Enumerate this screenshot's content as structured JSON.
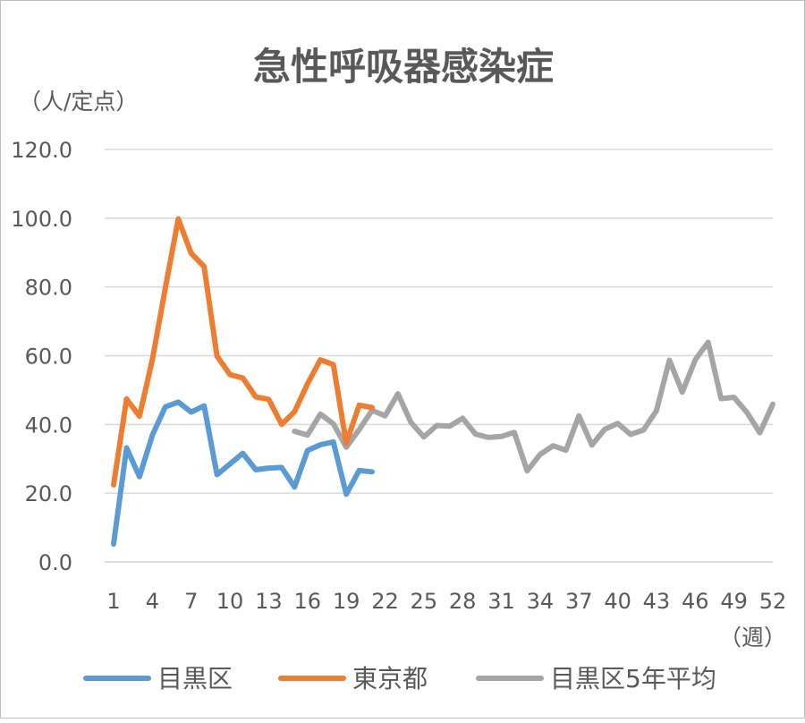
{
  "chart_data": {
    "type": "line",
    "title": "急性呼吸器感染症",
    "ylabel": "（人/定点）",
    "xlabel": "（週）",
    "ylim": [
      0,
      120
    ],
    "yticks": [
      "0.0",
      "20.0",
      "40.0",
      "60.0",
      "80.0",
      "100.0",
      "120.0"
    ],
    "xticks": [
      "1",
      "4",
      "7",
      "10",
      "13",
      "16",
      "19",
      "22",
      "25",
      "28",
      "31",
      "34",
      "37",
      "40",
      "43",
      "46",
      "49",
      "52"
    ],
    "xlim": [
      1,
      52
    ],
    "grid": true,
    "legend_position": "bottom",
    "series": [
      {
        "name": "目黒区",
        "color": "#5b9bd5",
        "x": [
          1,
          2,
          3,
          4,
          5,
          6,
          7,
          8,
          9,
          10,
          11,
          12,
          13,
          14,
          15,
          16,
          17,
          18,
          19,
          20,
          21
        ],
        "values": [
          5.2,
          33.2,
          24.8,
          36.9,
          45.1,
          46.5,
          43.6,
          45.4,
          25.4,
          28.5,
          31.6,
          26.8,
          27.3,
          27.5,
          21.8,
          32.4,
          34.1,
          34.9,
          19.7,
          26.6,
          26.2
        ]
      },
      {
        "name": "東京都",
        "color": "#ed7d31",
        "x": [
          1,
          2,
          3,
          4,
          5,
          6,
          7,
          8,
          9,
          10,
          11,
          12,
          13,
          14,
          15,
          16,
          17,
          18,
          19,
          20,
          21
        ],
        "values": [
          22.4,
          47.4,
          42.4,
          58.9,
          79.6,
          99.8,
          89.8,
          85.9,
          59.9,
          54.5,
          53.5,
          48.0,
          47.3,
          40.0,
          43.7,
          51.8,
          58.8,
          57.4,
          34.6,
          45.6,
          44.9
        ]
      },
      {
        "name": "目黒区5年平均",
        "color": "#a5a5a5",
        "x": [
          15,
          16,
          17,
          18,
          19,
          20,
          21,
          22,
          23,
          24,
          25,
          26,
          27,
          28,
          29,
          30,
          31,
          32,
          33,
          34,
          35,
          36,
          37,
          38,
          39,
          40,
          41,
          42,
          43,
          44,
          45,
          46,
          47,
          48,
          49,
          50,
          51,
          52
        ],
        "values": [
          38.0,
          36.9,
          43.0,
          40.2,
          33.4,
          38.5,
          44.1,
          42.5,
          48.9,
          40.6,
          36.4,
          39.7,
          39.5,
          41.8,
          37.2,
          36.2,
          36.5,
          37.7,
          26.5,
          31.3,
          33.8,
          32.5,
          42.5,
          34.0,
          38.6,
          40.3,
          37.1,
          38.4,
          44.0,
          58.7,
          49.4,
          58.8,
          63.9,
          47.5,
          47.9,
          43.5,
          37.6,
          45.9
        ]
      }
    ]
  }
}
